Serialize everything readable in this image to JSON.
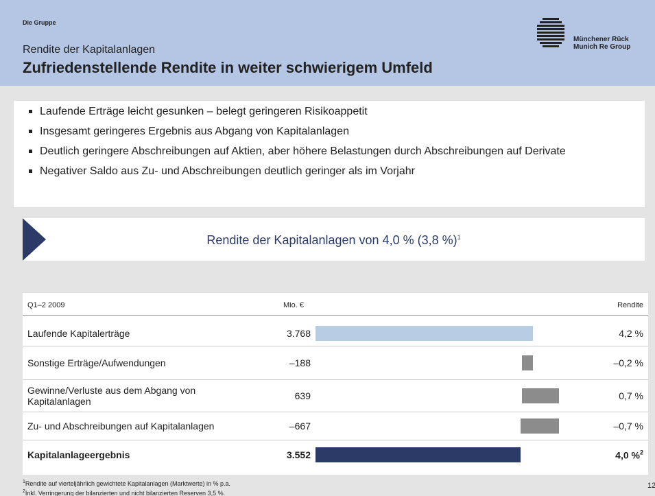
{
  "header": {
    "section": "Die Gruppe",
    "subtitle": "Rendite der Kapitalanlagen",
    "title": "Zufriedenstellende Rendite in weiter schwierigem Umfeld",
    "logo": [
      "Münchener Rück",
      "Munich Re Group"
    ]
  },
  "bullets": [
    "Laufende Erträge leicht gesunken – belegt geringeren Risikoappetit",
    "Insgesamt geringeres Ergebnis aus Abgang von Kapitalanlagen",
    "Deutlich geringere Abschreibungen auf Aktien, aber höhere Belastungen durch Abschreibungen auf Derivate",
    "Negativer Saldo aus Zu- und Abschreibungen deutlich geringer als im Vorjahr"
  ],
  "callout": {
    "text": "Rendite der Kapitalanlagen von 4,0 % (3,8 %)",
    "sup": "1"
  },
  "table": {
    "period": "Q1–2 2009",
    "unit": "Mio. €",
    "yield_header": "Rendite",
    "rows": [
      {
        "label": "Laufende Kapitalerträge",
        "value": 3768,
        "value_label": "3.768",
        "yield": "4,2 %",
        "color": "#b8cce4"
      },
      {
        "label": "Sonstige Erträge/Aufwendungen",
        "value": -188,
        "value_label": "–188",
        "yield": "–0,2 %",
        "color": "#8c8c8c"
      },
      {
        "label": "Gewinne/Verluste aus dem Abgang von Kapitalanlagen",
        "value": 639,
        "value_label": "639",
        "yield": "0,7 %",
        "color": "#8c8c8c"
      },
      {
        "label": "Zu- und Abschreibungen auf Kapitalanlagen",
        "value": -667,
        "value_label": "–667",
        "yield": "–0,7 %",
        "color": "#8c8c8c"
      },
      {
        "label": "Kapitalanlageergebnis",
        "value": 3552,
        "value_label": "3.552",
        "yield": "4,0 %",
        "yield_sup": "2",
        "color": "#2b3a67",
        "total": true
      }
    ]
  },
  "footnotes": [
    {
      "mark": "1",
      "text": "Rendite auf vierteljährlich gewichtete Kapitalanlagen (Marktwerte) in % p.a."
    },
    {
      "mark": "2",
      "text": "Inkl. Verringerung der bilanzierten und nicht bilanzierten Reserven 3,5 %."
    }
  ],
  "page_number": "12"
}
